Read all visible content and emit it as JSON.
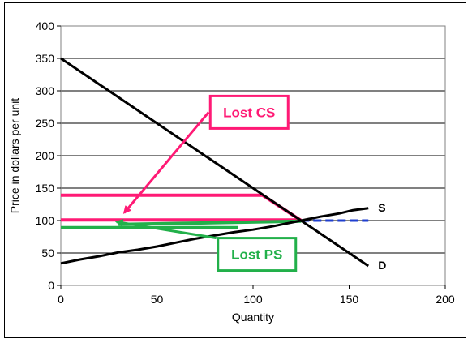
{
  "chart_data": {
    "type": "line",
    "xlabel": "Quantity",
    "ylabel": "Price in dollars per unit",
    "xlim": [
      0,
      200
    ],
    "ylim": [
      0,
      400
    ],
    "x_ticks": [
      "0",
      "50",
      "100",
      "150",
      "200"
    ],
    "y_ticks": [
      "0",
      "50",
      "100",
      "150",
      "200",
      "250",
      "300",
      "350",
      "400"
    ],
    "grid": "horizontal",
    "series": [
      {
        "name": "D",
        "color": "#000000",
        "points": [
          [
            0,
            350
          ],
          [
            160,
            30
          ]
        ]
      },
      {
        "name": "S",
        "color": "#000000",
        "points": [
          [
            0,
            34
          ],
          [
            10,
            40
          ],
          [
            20,
            45
          ],
          [
            30,
            51
          ],
          [
            40,
            55
          ],
          [
            50,
            60
          ],
          [
            60,
            66
          ],
          [
            70,
            72
          ],
          [
            80,
            77
          ],
          [
            90,
            82
          ],
          [
            100,
            86
          ],
          [
            110,
            91
          ],
          [
            125,
            100
          ],
          [
            135,
            106
          ],
          [
            145,
            111
          ],
          [
            152,
            116
          ],
          [
            160,
            119
          ]
        ]
      }
    ],
    "overlays": [
      {
        "id": "cs-upper-line",
        "color": "#ff1a75",
        "points": [
          [
            0,
            139
          ],
          [
            105,
            139
          ],
          [
            125,
            100
          ]
        ]
      },
      {
        "id": "cs-lower-line",
        "color": "#ff1a75",
        "points": [
          [
            0,
            101
          ],
          [
            125,
            101
          ]
        ]
      },
      {
        "id": "ps-lower-line",
        "color": "#22b04a",
        "points": [
          [
            0,
            89
          ],
          [
            92,
            89
          ]
        ]
      },
      {
        "id": "ps-upper-line",
        "color": "#22b04a",
        "points": [
          [
            30,
            94
          ],
          [
            125,
            99
          ]
        ]
      },
      {
        "id": "supply-extension",
        "color": "#1f3fd0",
        "points": [
          [
            125,
            100
          ],
          [
            160,
            100
          ]
        ],
        "dashed": true
      }
    ],
    "annotations": [
      {
        "id": "lost-cs",
        "text": "Lost CS",
        "color": "#ff1a75",
        "box_at": [
          98,
          267
        ],
        "arrow_to": [
          33,
          112
        ]
      },
      {
        "id": "lost-ps",
        "text": "Lost PS",
        "color": "#22b04a",
        "box_at": [
          102,
          48
        ],
        "arrow_to": [
          29,
          98
        ]
      }
    ]
  }
}
